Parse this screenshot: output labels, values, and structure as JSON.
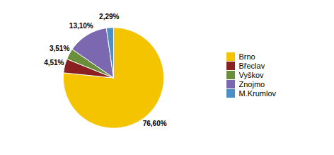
{
  "chart_data": {
    "type": "pie",
    "categories": [
      "Brno",
      "Břeclav",
      "Vyškov",
      "Znojmo",
      "M.Krumlov"
    ],
    "values": [
      76.6,
      4.51,
      3.51,
      13.1,
      2.29
    ],
    "value_labels": [
      "76,60%",
      "4,51%",
      "3,51%",
      "13,10%",
      "2,29%"
    ],
    "colors": [
      "#F5C400",
      "#8B2020",
      "#6B8E3A",
      "#7B68B0",
      "#4A90C4"
    ],
    "data_labels": true,
    "legend": "right"
  }
}
